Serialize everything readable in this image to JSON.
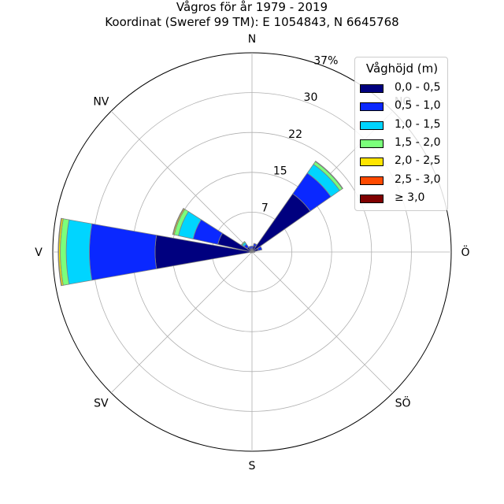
{
  "title": "Vågros för år 1979 - 2019",
  "subtitle": "Koordinat (Sweref 99 TM): E 1054843, N 6645768",
  "chart_data": {
    "type": "windrose",
    "directions": [
      "N",
      "NO",
      "Ö",
      "SÖ",
      "S",
      "SV",
      "V",
      "NV"
    ],
    "ring_labels": [
      "7",
      "15",
      "22",
      "30",
      "37%"
    ],
    "ring_values": [
      7.4,
      14.8,
      22.2,
      29.6,
      37
    ],
    "rmax": 37,
    "legend": {
      "title": "Våghöjd (m)",
      "entries": [
        {
          "label": "0,0 - 0,5",
          "color": "#00007f"
        },
        {
          "label": "0,5 - 1,0",
          "color": "#0a28ff"
        },
        {
          "label": "1,0 - 1,5",
          "color": "#00d5ff"
        },
        {
          "label": "1,5 - 2,0",
          "color": "#7bff7b"
        },
        {
          "label": "2,0 - 2,5",
          "color": "#ffe500"
        },
        {
          "label": "2,5 - 3,0",
          "color": "#ff4a00"
        },
        {
          "label": "≥ 3,0",
          "color": "#7f0000"
        }
      ]
    },
    "sectors": [
      {
        "angle": 0,
        "values": [
          0.6,
          0.5,
          0.0,
          0.0,
          0,
          0,
          0
        ]
      },
      {
        "angle": 22.5,
        "values": [
          1.2,
          0.4,
          0.05,
          0.0,
          0,
          0,
          0
        ]
      },
      {
        "angle": 45,
        "values": [
          13.2,
          4.7,
          2.0,
          0.6,
          0.1,
          0,
          0
        ]
      },
      {
        "angle": 67.5,
        "values": [
          1.2,
          0.7,
          0.0,
          0.0,
          0,
          0,
          0
        ]
      },
      {
        "angle": 90,
        "values": [
          0.3,
          0.2,
          0,
          0,
          0,
          0,
          0
        ]
      },
      {
        "angle": 112.5,
        "values": [
          0.1,
          0.05,
          0,
          0,
          0,
          0,
          0
        ]
      },
      {
        "angle": 135,
        "values": [
          0.05,
          0.05,
          0,
          0,
          0,
          0,
          0
        ]
      },
      {
        "angle": 157.5,
        "values": [
          0.05,
          0.05,
          0,
          0,
          0,
          0,
          0
        ]
      },
      {
        "angle": 180,
        "values": [
          0.05,
          0.05,
          0,
          0,
          0,
          0,
          0
        ]
      },
      {
        "angle": 202.5,
        "values": [
          0.05,
          0.05,
          0,
          0,
          0,
          0,
          0
        ]
      },
      {
        "angle": 225,
        "values": [
          0.1,
          0.05,
          0,
          0,
          0,
          0,
          0
        ]
      },
      {
        "angle": 247.5,
        "values": [
          0.2,
          0.1,
          0,
          0,
          0,
          0,
          0
        ]
      },
      {
        "angle": 270,
        "values": [
          18.0,
          12.2,
          4.3,
          1.1,
          0.3,
          0.1,
          0
        ]
      },
      {
        "angle": 292.5,
        "values": [
          6.5,
          4.7,
          2.8,
          0.8,
          0.2,
          0.1,
          0
        ]
      },
      {
        "angle": 315,
        "values": [
          1.1,
          0.7,
          0.4,
          0.2,
          0,
          0,
          0
        ]
      },
      {
        "angle": 337.5,
        "values": [
          0.6,
          0.5,
          0.0,
          0.0,
          0,
          0,
          0
        ]
      }
    ]
  }
}
